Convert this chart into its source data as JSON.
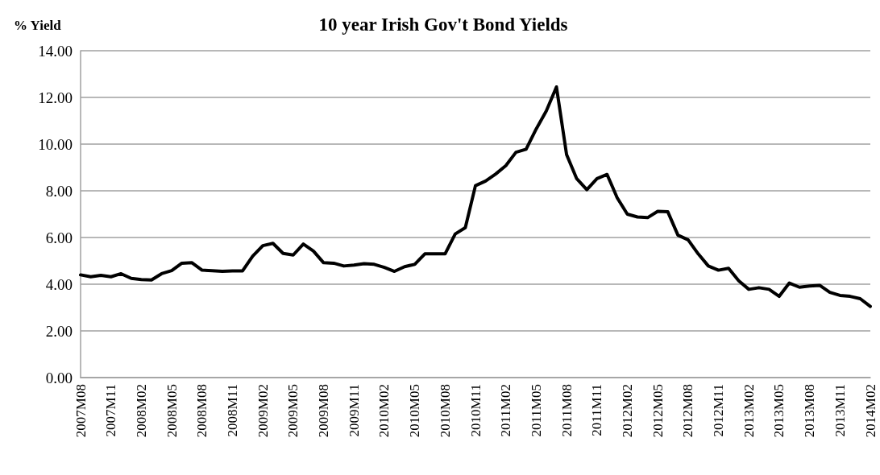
{
  "chart_data": {
    "type": "line",
    "title": "10 year Irish Gov't Bond Yields",
    "ylabel": "% Yield",
    "categories": [
      "2007M08",
      null,
      null,
      "2007M11",
      null,
      null,
      "2008M02",
      null,
      null,
      "2008M05",
      null,
      null,
      "2008M08",
      null,
      null,
      "2008M11",
      null,
      null,
      "2009M02",
      null,
      null,
      "2009M05",
      null,
      null,
      "2009M08",
      null,
      null,
      "2009M11",
      null,
      null,
      "2010M02",
      null,
      null,
      "2010M05",
      null,
      null,
      "2010M08",
      null,
      null,
      "2010M11",
      null,
      null,
      "2011M02",
      null,
      null,
      "2011M05",
      null,
      null,
      "2011M08",
      null,
      null,
      "2011M11",
      null,
      null,
      "2012M02",
      null,
      null,
      "2012M05",
      null,
      null,
      "2012M08",
      null,
      null,
      "2012M11",
      null,
      null,
      "2013M02",
      null,
      null,
      "2013M05",
      null,
      null,
      "2013M08",
      null,
      null,
      "2013M11",
      null,
      null,
      "2014M02"
    ],
    "series": [
      {
        "color": "#000000",
        "values": [
          4.4,
          4.32,
          4.38,
          4.32,
          4.45,
          4.25,
          4.2,
          4.18,
          4.45,
          4.58,
          4.9,
          4.92,
          4.6,
          4.58,
          4.55,
          4.57,
          4.57,
          5.2,
          5.65,
          5.75,
          5.32,
          5.25,
          5.72,
          5.42,
          4.92,
          4.9,
          4.78,
          4.82,
          4.88,
          4.85,
          4.72,
          4.55,
          4.75,
          4.85,
          5.3,
          5.3,
          5.3,
          6.15,
          6.42,
          8.22,
          8.42,
          8.72,
          9.08,
          9.65,
          9.78,
          10.65,
          11.42,
          12.45,
          9.55,
          8.52,
          8.05,
          8.52,
          8.7,
          7.7,
          7.0,
          6.88,
          6.85,
          7.12,
          7.1,
          6.1,
          5.9,
          5.3,
          4.78,
          4.6,
          4.68,
          4.15,
          3.78,
          3.85,
          3.78,
          3.48,
          4.05,
          3.87,
          3.92,
          3.95,
          3.65,
          3.52,
          3.48,
          3.38,
          3.05
        ]
      }
    ],
    "ylim": [
      0,
      14
    ],
    "yticks": [
      {
        "value": 0,
        "label": "0.00"
      },
      {
        "value": 2,
        "label": "2.00"
      },
      {
        "value": 4,
        "label": "4.00"
      },
      {
        "value": 6,
        "label": "6.00"
      },
      {
        "value": 8,
        "label": "8.00"
      },
      {
        "value": 10,
        "label": "10.00"
      },
      {
        "value": 12,
        "label": "12.00"
      },
      {
        "value": 14,
        "label": "14.00"
      }
    ],
    "grid": "y",
    "marker": "none",
    "line_style": "solid"
  }
}
